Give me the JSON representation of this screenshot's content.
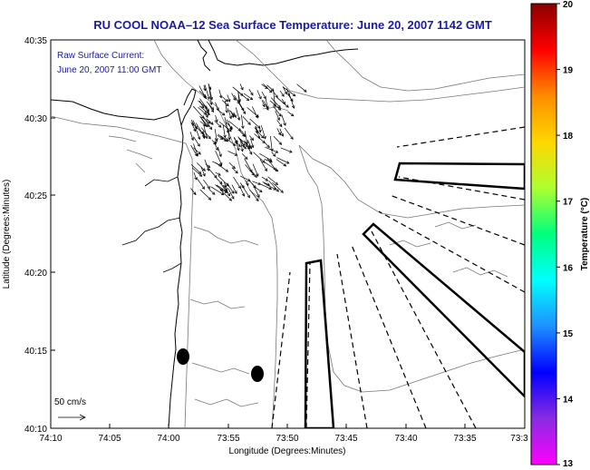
{
  "title": "RU COOL   NOAA–12  Sea Surface Temperature:  June 20, 2007 1142 GMT",
  "annotation": {
    "line1": "Raw Surface Current:",
    "line2": "June 20, 2007 11:00 GMT"
  },
  "scale_label": "50 cm/s",
  "x_axis": {
    "label": "Longitude (Degrees:Minutes)",
    "ticks": [
      "74:10",
      "74:05",
      "74:00",
      "73:55",
      "73:50",
      "73:45",
      "73:40",
      "73:35",
      "73:3"
    ]
  },
  "y_axis": {
    "label": "Latitude (Degrees:Minutes)",
    "ticks": [
      "40:35",
      "40:30",
      "40:25",
      "40:20",
      "40:15",
      "40:10"
    ]
  },
  "colorbar": {
    "label": "Temperature (°C)",
    "ticks": [
      "20",
      "19",
      "18",
      "17",
      "16",
      "15",
      "14",
      "13"
    ],
    "colors": [
      "#8b0000",
      "#ff0000",
      "#ff8c00",
      "#ffd700",
      "#adff2f",
      "#00ff7f",
      "#00ffff",
      "#1e90ff",
      "#0000ff",
      "#8a2be2",
      "#ff00ff"
    ]
  }
}
